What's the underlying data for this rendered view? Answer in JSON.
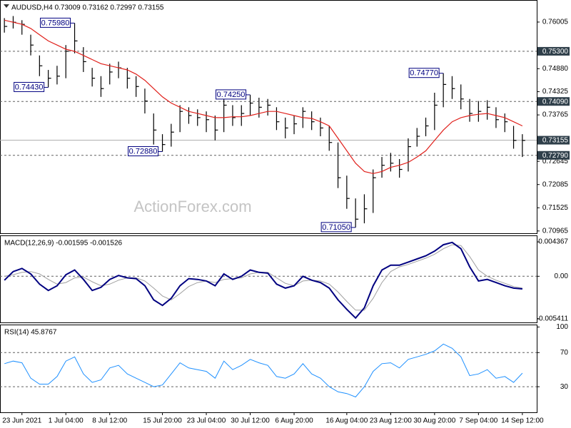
{
  "chart_data": [
    {
      "type": "ohlc",
      "title": "AUDUSD,H4  0.73009 0.73162 0.72997 0.73155",
      "watermark": "ActionForex.com",
      "color": "#000000",
      "high": [
        0.761,
        0.7615,
        0.7605,
        0.757,
        0.752,
        0.7485,
        0.7495,
        0.7545,
        0.7598,
        0.754,
        0.749,
        0.747,
        0.75,
        0.7505,
        0.749,
        0.747,
        0.744,
        0.738,
        0.733,
        0.7355,
        0.74,
        0.7395,
        0.739,
        0.7385,
        0.7375,
        0.7415,
        0.74,
        0.74,
        0.7425,
        0.7418,
        0.7415,
        0.7395,
        0.737,
        0.7375,
        0.7395,
        0.7385,
        0.737,
        0.735,
        0.731,
        0.723,
        0.7175,
        0.7185,
        0.7245,
        0.7275,
        0.7285,
        0.727,
        0.732,
        0.7345,
        0.737,
        0.743,
        0.7477,
        0.747,
        0.745,
        0.7415,
        0.741,
        0.7412,
        0.7395,
        0.738,
        0.735,
        0.733
      ],
      "low": [
        0.7575,
        0.7585,
        0.757,
        0.752,
        0.747,
        0.7443,
        0.745,
        0.7465,
        0.7525,
        0.748,
        0.7445,
        0.742,
        0.745,
        0.7465,
        0.744,
        0.742,
        0.738,
        0.7305,
        0.7288,
        0.73,
        0.7335,
        0.7355,
        0.735,
        0.7335,
        0.7315,
        0.7335,
        0.735,
        0.735,
        0.7375,
        0.737,
        0.7375,
        0.734,
        0.732,
        0.733,
        0.7345,
        0.734,
        0.7325,
        0.729,
        0.72,
        0.715,
        0.7105,
        0.7115,
        0.714,
        0.7225,
        0.724,
        0.7225,
        0.724,
        0.73,
        0.7325,
        0.734,
        0.7395,
        0.7415,
        0.739,
        0.736,
        0.736,
        0.7365,
        0.7345,
        0.7335,
        0.7295,
        0.7275
      ],
      "close": [
        0.759,
        0.76,
        0.7595,
        0.7545,
        0.7495,
        0.7465,
        0.747,
        0.753,
        0.7555,
        0.7505,
        0.7465,
        0.744,
        0.748,
        0.749,
        0.7465,
        0.7445,
        0.741,
        0.734,
        0.7305,
        0.7335,
        0.7385,
        0.7375,
        0.737,
        0.7365,
        0.734,
        0.74,
        0.737,
        0.738,
        0.7405,
        0.7395,
        0.74,
        0.736,
        0.7345,
        0.7355,
        0.7385,
        0.736,
        0.7345,
        0.731,
        0.7225,
        0.7175,
        0.7125,
        0.715,
        0.7225,
        0.7255,
        0.726,
        0.7245,
        0.73,
        0.7325,
        0.735,
        0.74,
        0.745,
        0.744,
        0.7415,
        0.738,
        0.7385,
        0.7395,
        0.7365,
        0.736,
        0.7315,
        0.7315
      ],
      "ma": {
        "color": "#e0201b",
        "values": [
          0.7605,
          0.76,
          0.7595,
          0.7585,
          0.757,
          0.7555,
          0.7545,
          0.7535,
          0.753,
          0.752,
          0.751,
          0.75,
          0.7495,
          0.749,
          0.7485,
          0.7475,
          0.746,
          0.744,
          0.742,
          0.7405,
          0.7395,
          0.7385,
          0.738,
          0.7375,
          0.737,
          0.737,
          0.7372,
          0.7372,
          0.7375,
          0.738,
          0.7385,
          0.7385,
          0.738,
          0.7375,
          0.737,
          0.7368,
          0.736,
          0.735,
          0.732,
          0.729,
          0.726,
          0.724,
          0.7235,
          0.724,
          0.725,
          0.7255,
          0.7262,
          0.7275,
          0.729,
          0.7315,
          0.734,
          0.736,
          0.737,
          0.7375,
          0.7378,
          0.738,
          0.7375,
          0.737,
          0.736,
          0.735
        ]
      },
      "annotations": [
        {
          "index": 8,
          "value": 0.7598,
          "label": "0.75980"
        },
        {
          "index": 5,
          "value": 0.7443,
          "label": "0.74430"
        },
        {
          "index": 18,
          "value": 0.7288,
          "label": "0.72880"
        },
        {
          "index": 28,
          "value": 0.7425,
          "label": "0.74250"
        },
        {
          "index": 40,
          "value": 0.7105,
          "label": "0.71050"
        },
        {
          "index": 50,
          "value": 0.7477,
          "label": "0.74770"
        }
      ],
      "levels": [
        {
          "value": 0.753,
          "label": "0.75300",
          "style": "dashed"
        },
        {
          "value": 0.7409,
          "label": "0.74090",
          "style": "dashed"
        },
        {
          "value": 0.73155,
          "label": "0.73155",
          "style": "solid"
        },
        {
          "value": 0.7279,
          "label": "0.72790",
          "style": "dashed"
        }
      ],
      "ylim": [
        0.7091,
        0.7652
      ],
      "yticks": [
        0.76005,
        {
          "value": 0.7488,
          "label": "0.74880"
        },
        0.74325,
        0.73765,
        0.72645,
        0.72085,
        0.71525,
        0.70965
      ]
    },
    {
      "type": "macd",
      "title": "MACD(12,26,9) -0.001595 -0.001526",
      "series": [
        {
          "color": "#000080",
          "values": [
            -0.0005,
            0.0006,
            0.001,
            0.0003,
            -0.001,
            -0.0018,
            -0.0012,
            0.0002,
            0.0008,
            -0.0004,
            -0.0018,
            -0.0014,
            -0.0004,
            0.0001,
            -0.0002,
            -0.0003,
            -0.0012,
            -0.003,
            -0.0037,
            -0.0028,
            -0.0012,
            -0.0003,
            -0.0004,
            -0.0006,
            -0.0012,
            0.0003,
            -0.0004,
            0,
            0.0008,
            0.0005,
            0.0004,
            -0.001,
            -0.0015,
            -0.0012,
            0,
            -0.0005,
            -0.0008,
            -0.0015,
            -0.003,
            -0.0042,
            -0.0053,
            -0.004,
            -0.0012,
            0.0008,
            0.0014,
            0.0014,
            0.0018,
            0.0022,
            0.0026,
            0.0032,
            0.004,
            0.0043,
            0.0035,
            0.0012,
            -0.0006,
            -0.0004,
            -0.0008,
            -0.0012,
            -0.0015,
            -0.0016
          ]
        },
        {
          "color": "#a0a0a0",
          "values": [
            0,
            0.0002,
            0.0005,
            0.0006,
            0.0003,
            -0.0004,
            -0.001,
            -0.0008,
            -0.0002,
            -0.0001,
            -0.0007,
            -0.0012,
            -0.001,
            -0.0005,
            -0.0002,
            -0.0002,
            -0.0006,
            -0.0015,
            -0.0025,
            -0.003,
            -0.0022,
            -0.0013,
            -0.0008,
            -0.0006,
            -0.0008,
            -0.0004,
            -0.0003,
            -0.0002,
            0.0003,
            0.0005,
            0.0005,
            -0.0002,
            -0.0009,
            -0.0012,
            -0.0006,
            -0.0005,
            -0.0006,
            -0.001,
            -0.002,
            -0.0032,
            -0.0043,
            -0.0043,
            -0.0028,
            -0.0008,
            0.0006,
            0.0012,
            0.0015,
            0.0019,
            0.0023,
            0.0028,
            0.0035,
            0.004,
            0.0039,
            0.0025,
            0.0008,
            0,
            -0.0005,
            -0.0009,
            -0.0013,
            -0.0015
          ]
        }
      ],
      "levels": [
        {
          "value": 0,
          "style": "dashed"
        }
      ],
      "ylim": [
        -0.00586,
        0.0051
      ],
      "yticks": [
        0.004367,
        {
          "value": 0,
          "label": "0.00"
        },
        -0.005411
      ]
    },
    {
      "type": "rsi",
      "title": "RSI(14) 45.8767",
      "color": "#1e90ff",
      "values": [
        57,
        60,
        58,
        40,
        33,
        33,
        42,
        60,
        65,
        45,
        35,
        38,
        52,
        55,
        45,
        40,
        35,
        30,
        32,
        45,
        58,
        52,
        50,
        48,
        40,
        60,
        50,
        55,
        62,
        58,
        55,
        42,
        40,
        45,
        57,
        45,
        40,
        30,
        24,
        22,
        18,
        30,
        48,
        57,
        58,
        52,
        62,
        65,
        68,
        72,
        80,
        75,
        65,
        43,
        45,
        50,
        40,
        42,
        35,
        45.8767
      ],
      "levels": [
        {
          "value": 70,
          "style": "dashed"
        },
        {
          "value": 30,
          "style": "dashed"
        }
      ],
      "ylim": [
        0,
        102
      ],
      "yticks": [
        100,
        70,
        30
      ],
      "categories": [
        null,
        null,
        "23 Jun 2021",
        null,
        null,
        null,
        null,
        "1 Jul 04:00",
        null,
        null,
        null,
        null,
        "8 Jul 12:00",
        null,
        null,
        null,
        null,
        null,
        "15 Jul 20:00",
        null,
        null,
        null,
        null,
        "23 Jul 04:00",
        null,
        null,
        null,
        null,
        "30 Jul 12:00",
        null,
        null,
        null,
        null,
        "6 Aug 20:00",
        null,
        null,
        null,
        null,
        null,
        "16 Aug 04:00",
        null,
        null,
        null,
        null,
        "23 Aug 12:00",
        null,
        null,
        null,
        null,
        "30 Aug 20:00",
        null,
        null,
        null,
        null,
        "7 Sep 04:00",
        null,
        null,
        null,
        null,
        "14 Sep 12:00"
      ]
    }
  ]
}
